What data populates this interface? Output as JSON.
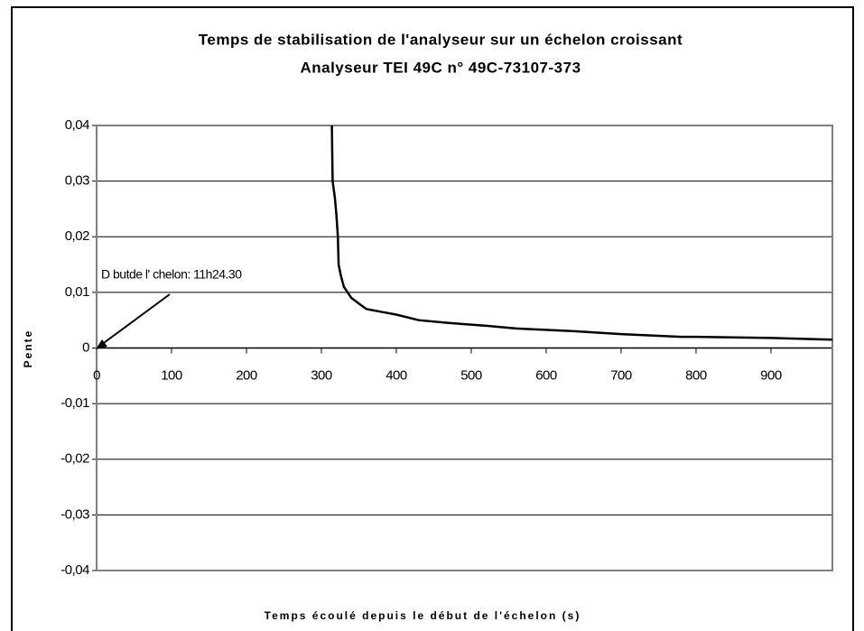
{
  "chart_data": {
    "type": "line",
    "title": "Temps de stabilisation de l'analyseur sur un échelon croissant",
    "subtitle": "Analyseur TEI 49C n° 49C-73107-373",
    "x_label": "Temps écoulé depuis le début de l'échelon (s)",
    "y_label": "Pente",
    "annotation": "D butde l'  chelon: 11h24.30",
    "xlim": [
      0,
      982
    ],
    "xticks": [
      0,
      100,
      200,
      300,
      400,
      500,
      600,
      700,
      800,
      900
    ],
    "ylim": [
      -0.04,
      0.04
    ],
    "yticks": [
      {
        "value": -0.04,
        "label": "-0,04"
      },
      {
        "value": -0.03,
        "label": "-0,03"
      },
      {
        "value": -0.02,
        "label": "-0,02"
      },
      {
        "value": -0.01,
        "label": "-0,01"
      },
      {
        "value": 0,
        "label": "0"
      },
      {
        "value": 0.01,
        "label": "0,01"
      },
      {
        "value": 0.02,
        "label": "0,02"
      },
      {
        "value": 0.03,
        "label": "0,03"
      },
      {
        "value": 0.04,
        "label": "0,04"
      }
    ],
    "grid": true,
    "series": [
      {
        "color": "#000000",
        "x": [
          314,
          315,
          318,
          320,
          322,
          323,
          326,
          330,
          335,
          340,
          350,
          360,
          380,
          400,
          430,
          470,
          520,
          560,
          640,
          700,
          780,
          800,
          900,
          982
        ],
        "values": [
          0.04,
          0.03,
          0.027,
          0.024,
          0.02,
          0.015,
          0.013,
          0.011,
          0.01,
          0.009,
          0.008,
          0.007,
          0.0065,
          0.006,
          0.005,
          0.0045,
          0.004,
          0.0035,
          0.003,
          0.0025,
          0.002,
          0.002,
          0.0018,
          0.0015
        ]
      }
    ]
  }
}
